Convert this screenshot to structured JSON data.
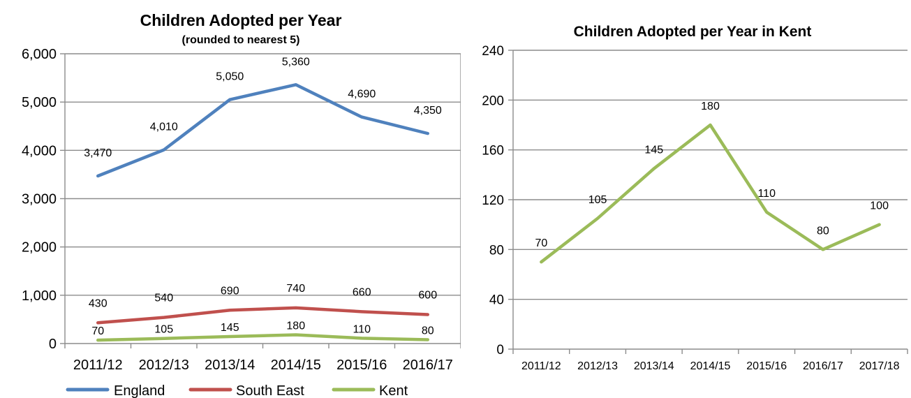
{
  "chart_data": [
    {
      "type": "line",
      "title": "Children Adopted per Year",
      "subtitle": "(rounded to nearest 5)",
      "categories": [
        "2011/12",
        "2012/13",
        "2013/14",
        "2014/15",
        "2015/16",
        "2016/17"
      ],
      "y_ticks": [
        "0",
        "1,000",
        "2,000",
        "3,000",
        "4,000",
        "5,000",
        "6,000"
      ],
      "ylim": [
        0,
        6000
      ],
      "grid": true,
      "legend_position": "bottom",
      "series": [
        {
          "name": "England",
          "color": "#4f81bd",
          "values": [
            3470,
            4010,
            5050,
            5360,
            4690,
            4350
          ],
          "labels": [
            "3,470",
            "4,010",
            "5,050",
            "5,360",
            "4,690",
            "4,350"
          ]
        },
        {
          "name": "South East",
          "color": "#c0504d",
          "values": [
            430,
            540,
            690,
            740,
            660,
            600
          ],
          "labels": [
            "430",
            "540",
            "690",
            "740",
            "660",
            "600"
          ]
        },
        {
          "name": "Kent",
          "color": "#9bbb59",
          "values": [
            70,
            105,
            145,
            180,
            110,
            80
          ],
          "labels": [
            "70",
            "105",
            "145",
            "180",
            "110",
            "80"
          ]
        }
      ]
    },
    {
      "type": "line",
      "title": "Children Adopted per Year in Kent",
      "categories": [
        "2011/12",
        "2012/13",
        "2013/14",
        "2014/15",
        "2015/16",
        "2016/17",
        "2017/18"
      ],
      "y_ticks": [
        "0",
        "40",
        "80",
        "120",
        "160",
        "200",
        "240"
      ],
      "ylim": [
        0,
        240
      ],
      "grid": true,
      "series": [
        {
          "name": "Kent",
          "color": "#9bbb59",
          "values": [
            70,
            105,
            145,
            180,
            110,
            80,
            100
          ],
          "labels": [
            "70",
            "105",
            "145",
            "180",
            "110",
            "80",
            "100"
          ]
        }
      ]
    }
  ]
}
